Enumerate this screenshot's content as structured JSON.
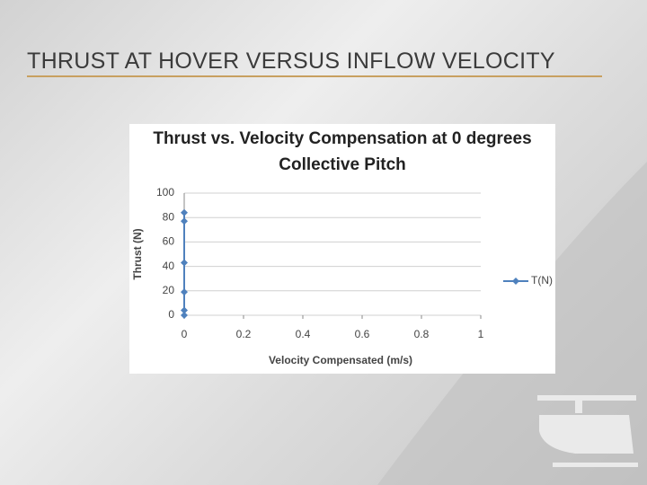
{
  "title": "THRUST AT HOVER VERSUS INFLOW VELOCITY",
  "chart_data": {
    "type": "line",
    "title": "Thrust vs. Velocity Compensation at 0 degrees Collective Pitch",
    "x_label": "Velocity Compensated (m/s)",
    "y_label": "Thrust (N)",
    "x": [
      0,
      0,
      0,
      0,
      0,
      0
    ],
    "series": [
      {
        "name": "T(N)",
        "color": "#4f81bd",
        "values": [
          84,
          77,
          43,
          19,
          4,
          0
        ]
      }
    ],
    "xlim": [
      0,
      1
    ],
    "xticks": [
      0,
      0.2,
      0.4,
      0.6,
      0.8,
      1
    ],
    "ylim": [
      0,
      100
    ],
    "yticks": [
      0,
      20,
      40,
      60,
      80,
      100
    ],
    "grid": true,
    "legend": "right"
  }
}
